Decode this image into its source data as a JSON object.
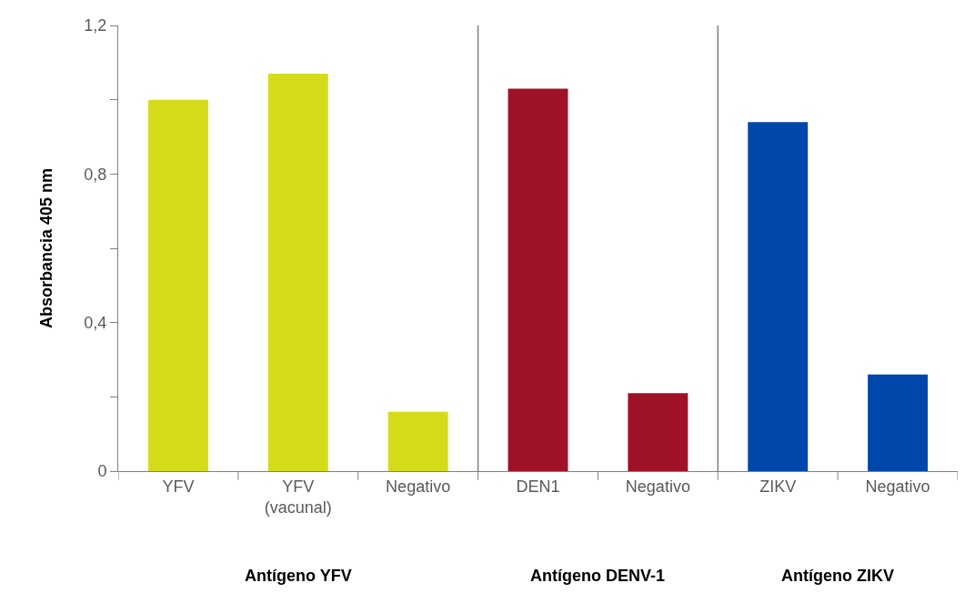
{
  "chart_data": {
    "type": "bar",
    "ylabel": "Absorbancia 405 nm",
    "categories": [
      "YFV",
      "YFV\n(vacunal)",
      "Negativo",
      "DEN1",
      "Negativo",
      "ZIKV",
      "Negativo"
    ],
    "values": [
      1.0,
      1.07,
      0.16,
      1.03,
      0.21,
      0.94,
      0.26
    ],
    "colors": [
      "#d4dc1a",
      "#d4dc1a",
      "#d4dc1a",
      "#a01228",
      "#a01228",
      "#0047ab",
      "#0047ab"
    ],
    "ylim": [
      0,
      1.2
    ],
    "yticks": [
      {
        "value": 0,
        "label": "0"
      },
      {
        "value": 0.2,
        "label": null
      },
      {
        "value": 0.4,
        "label": "0,4"
      },
      {
        "value": 0.6,
        "label": null
      },
      {
        "value": 0.8,
        "label": "0,8"
      },
      {
        "value": 1.0,
        "label": null
      },
      {
        "value": 1.2,
        "label": "1,2"
      }
    ],
    "annotations": [
      "Antígeno YFV",
      "Antígeno DENV-1",
      "Antígeno ZIKV"
    ]
  }
}
